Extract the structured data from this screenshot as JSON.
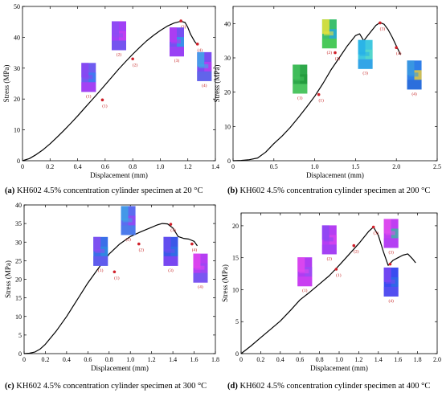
{
  "captions": [
    {
      "letter": "(a)",
      "text": " KH602 4.5% concentration cylinder specimen at 20 °C"
    },
    {
      "letter": "(b)",
      "text": " KH602 4.5% concentration cylinder specimen at 200 °C"
    },
    {
      "letter": "(c)",
      "text": " KH602 4.5% concentration cylinder specimen at 300 °C"
    },
    {
      "letter": "(d)",
      "text": " KH602 4.5% concentration cylinder specimen at 400 °C"
    }
  ],
  "chart_data": [
    {
      "type": "line",
      "xlabel": "Displacement (mm)",
      "ylabel": "Stress (MPa)",
      "xlim": [
        0,
        1.4
      ],
      "ylim": [
        0,
        50
      ],
      "xticks": [
        "0",
        "0.2",
        "0.4",
        "0.6",
        "0.8",
        "1.0",
        "1.2",
        "1.4"
      ],
      "xtick_values": [
        0,
        0.2,
        0.4,
        0.6,
        0.8,
        1.0,
        1.2,
        1.4
      ],
      "yticks": [
        "0",
        "10",
        "20",
        "30",
        "40",
        "50"
      ],
      "ytick_values": [
        0,
        10,
        20,
        30,
        40,
        50
      ],
      "x": [
        0,
        0.05,
        0.1,
        0.15,
        0.2,
        0.25,
        0.3,
        0.35,
        0.4,
        0.45,
        0.5,
        0.55,
        0.6,
        0.65,
        0.7,
        0.75,
        0.8,
        0.85,
        0.9,
        0.95,
        1.0,
        1.05,
        1.1,
        1.15,
        1.18,
        1.2,
        1.22,
        1.25,
        1.27
      ],
      "y": [
        0,
        0.7,
        2.0,
        3.6,
        5.5,
        7.6,
        9.8,
        12.1,
        14.5,
        17.0,
        19.5,
        22.0,
        24.6,
        27.2,
        29.8,
        32.2,
        34.5,
        36.7,
        38.8,
        40.6,
        42.2,
        43.6,
        44.6,
        45.2,
        44.8,
        43.2,
        41.0,
        38.6,
        37.5
      ],
      "points": [
        {
          "label": "(1)",
          "x": 0.58,
          "y": 19.7
        },
        {
          "label": "(2)",
          "x": 0.8,
          "y": 33.0
        },
        {
          "label": "(3)",
          "x": 1.15,
          "y": 45.3
        },
        {
          "label": "(4)",
          "x": 1.27,
          "y": 37.8
        }
      ],
      "insets": [
        {
          "label": "(1)",
          "x": 0.48,
          "y": 27.0,
          "colors": [
            "#6f5cf0",
            "#8a45f2",
            "#3b7cf0",
            "#b03cf5"
          ]
        },
        {
          "label": "(2)",
          "x": 0.7,
          "y": 40.5,
          "colors": [
            "#a040f6",
            "#8d4cf3",
            "#c33ff0",
            "#6a59ee"
          ]
        },
        {
          "label": "(3)",
          "x": 1.12,
          "y": 38.5,
          "colors": [
            "#7650f2",
            "#b539f2",
            "#2e9be8",
            "#a33ff4"
          ]
        },
        {
          "label": "(4)",
          "x": 1.32,
          "y": 30.5,
          "colors": [
            "#7a4cf1",
            "#3fa8e8",
            "#b73ef2",
            "#5d6ae8"
          ]
        }
      ]
    },
    {
      "type": "line",
      "xlabel": "Displacement (mm)",
      "ylabel": "Stress (MPa)",
      "xlim": [
        0,
        2.5
      ],
      "ylim": [
        0,
        45
      ],
      "xticks": [
        "0",
        "0.5",
        "1.0",
        "1.5",
        "2.0",
        "2.5"
      ],
      "xtick_values": [
        0,
        0.5,
        1.0,
        1.5,
        2.0,
        2.5
      ],
      "yticks": [
        "0",
        "10",
        "20",
        "30",
        "40"
      ],
      "ytick_values": [
        0,
        10,
        20,
        30,
        40
      ],
      "x": [
        0,
        0.1,
        0.2,
        0.3,
        0.4,
        0.5,
        0.6,
        0.7,
        0.8,
        0.9,
        1.0,
        1.1,
        1.2,
        1.3,
        1.4,
        1.5,
        1.55,
        1.6,
        1.65,
        1.7,
        1.75,
        1.8,
        1.85,
        1.9,
        1.95,
        2.0,
        2.05
      ],
      "y": [
        0,
        0.1,
        0.3,
        0.8,
        2.5,
        5.0,
        7.2,
        9.7,
        12.6,
        15.6,
        18.8,
        22.5,
        26.5,
        30.0,
        33.5,
        36.5,
        37.0,
        35.0,
        36.5,
        38.0,
        39.5,
        40.3,
        39.8,
        38.2,
        36.0,
        33.5,
        31.0
      ],
      "points": [
        {
          "label": "(1)",
          "x": 1.05,
          "y": 19.3
        },
        {
          "label": "(2)",
          "x": 1.25,
          "y": 31.5
        },
        {
          "label": "(3)",
          "x": 1.8,
          "y": 40.2
        },
        {
          "label": "(4)",
          "x": 2.0,
          "y": 33.0
        }
      ],
      "insets": [
        {
          "label": "(1)",
          "x": 0.82,
          "y": 23.8,
          "colors": [
            "#2ea84a",
            "#42c05c",
            "#229a3c",
            "#55cc66"
          ]
        },
        {
          "label": "(2)",
          "x": 1.18,
          "y": 37.0,
          "colors": [
            "#3cbf6e",
            "#e8e23c",
            "#28a8d8",
            "#4ccc55"
          ]
        },
        {
          "label": "(3)",
          "x": 1.62,
          "y": 31.0,
          "colors": [
            "#40c8e0",
            "#28b0e8",
            "#58d8c8",
            "#2f9ce8"
          ]
        },
        {
          "label": "(4)",
          "x": 2.22,
          "y": 25.0,
          "colors": [
            "#2f7ee8",
            "#3a9ae0",
            "#e6c83c",
            "#2a6ad8"
          ]
        }
      ]
    },
    {
      "type": "line",
      "xlabel": "Displacement (mm)",
      "ylabel": "Stress (MPa)",
      "xlim": [
        0,
        1.8
      ],
      "ylim": [
        0,
        40
      ],
      "xticks": [
        "0",
        "0.2",
        "0.4",
        "0.6",
        "0.8",
        "1.0",
        "1.2",
        "1.4",
        "1.6",
        "1.8"
      ],
      "xtick_values": [
        0,
        0.2,
        0.4,
        0.6,
        0.8,
        1.0,
        1.2,
        1.4,
        1.6,
        1.8
      ],
      "yticks": [
        "0",
        "5",
        "10",
        "15",
        "20",
        "25",
        "30",
        "35",
        "40"
      ],
      "ytick_values": [
        0,
        5,
        10,
        15,
        20,
        25,
        30,
        35,
        40
      ],
      "x": [
        0,
        0.05,
        0.1,
        0.15,
        0.2,
        0.3,
        0.4,
        0.5,
        0.6,
        0.7,
        0.8,
        0.9,
        1.0,
        1.1,
        1.2,
        1.25,
        1.3,
        1.35,
        1.4,
        1.45,
        1.5,
        1.55,
        1.6,
        1.63
      ],
      "y": [
        0,
        0.1,
        0.4,
        1.2,
        2.5,
        6.0,
        10.0,
        14.5,
        19.0,
        23.0,
        26.8,
        29.5,
        31.5,
        32.8,
        34.0,
        34.6,
        35.0,
        34.9,
        33.8,
        31.5,
        31.0,
        30.8,
        30.2,
        29.0
      ],
      "points": [
        {
          "label": "(1)",
          "x": 0.85,
          "y": 22.0
        },
        {
          "label": "(2)",
          "x": 1.08,
          "y": 29.5
        },
        {
          "label": "(3)",
          "x": 1.38,
          "y": 34.8
        },
        {
          "label": "(4)",
          "x": 1.58,
          "y": 29.5
        }
      ],
      "insets": [
        {
          "label": "(1)",
          "x": 0.72,
          "y": 27.5,
          "colors": [
            "#3a6fe8",
            "#8a4cf2",
            "#2e8ce0",
            "#6a58ee"
          ]
        },
        {
          "label": "(2)",
          "x": 0.98,
          "y": 35.8,
          "colors": [
            "#5b6cf0",
            "#3fa0e6",
            "#9548f3",
            "#4a80ea"
          ]
        },
        {
          "label": "(3)",
          "x": 1.38,
          "y": 27.5,
          "colors": [
            "#3b58e8",
            "#6a4cf0",
            "#2f70e4",
            "#8a44f2"
          ]
        },
        {
          "label": "(4)",
          "x": 1.66,
          "y": 23.0,
          "colors": [
            "#b43ef2",
            "#e044ee",
            "#9a48f3",
            "#6a5cf0"
          ]
        }
      ]
    },
    {
      "type": "line",
      "xlabel": "Displacement (mm)",
      "ylabel": "Stress (MPa)",
      "xlim": [
        0,
        2.0
      ],
      "ylim": [
        0,
        22
      ],
      "xticks": [
        "0",
        "0.2",
        "0.4",
        "0.6",
        "0.8",
        "1.0",
        "1.2",
        "1.4",
        "1.6",
        "1.8",
        "2.0"
      ],
      "xtick_values": [
        0,
        0.2,
        0.4,
        0.6,
        0.8,
        1.0,
        1.2,
        1.4,
        1.6,
        1.8,
        2.0
      ],
      "yticks": [
        "0",
        "5",
        "10",
        "15",
        "20"
      ],
      "ytick_values": [
        0,
        5,
        10,
        15,
        20
      ],
      "x": [
        0,
        0.1,
        0.2,
        0.3,
        0.4,
        0.5,
        0.6,
        0.7,
        0.8,
        0.9,
        1.0,
        1.1,
        1.2,
        1.3,
        1.35,
        1.4,
        1.45,
        1.5,
        1.55,
        1.6,
        1.65,
        1.7,
        1.75,
        1.78
      ],
      "y": [
        0,
        1.2,
        2.5,
        3.8,
        5.1,
        6.7,
        8.4,
        9.6,
        10.9,
        12.2,
        13.8,
        15.5,
        17.2,
        19.1,
        19.8,
        18.5,
        16.0,
        13.8,
        14.6,
        15.0,
        15.4,
        15.6,
        14.8,
        14.2
      ],
      "points": [
        {
          "label": "(1)",
          "x": 0.97,
          "y": 13.2
        },
        {
          "label": "(2)",
          "x": 1.15,
          "y": 16.9
        },
        {
          "label": "(3)",
          "x": 1.35,
          "y": 19.8
        },
        {
          "label": "(4)",
          "x": 1.52,
          "y": 14.0
        }
      ],
      "insets": [
        {
          "label": "(1)",
          "x": 0.65,
          "y": 12.8,
          "colors": [
            "#b03cf2",
            "#e048ee",
            "#9a4ef3",
            "#d040f0"
          ]
        },
        {
          "label": "(2)",
          "x": 0.9,
          "y": 17.8,
          "colors": [
            "#b53ef2",
            "#8c48f3",
            "#d444ef",
            "#a042f4"
          ]
        },
        {
          "label": "(3)",
          "x": 1.53,
          "y": 18.8,
          "colors": [
            "#c03ef2",
            "#e04cee",
            "#3fb0a8",
            "#b040f3"
          ]
        },
        {
          "label": "(4)",
          "x": 1.53,
          "y": 11.2,
          "colors": [
            "#3a4cf0",
            "#7a46f2",
            "#2f6ae6",
            "#5a50f0"
          ]
        }
      ]
    }
  ]
}
